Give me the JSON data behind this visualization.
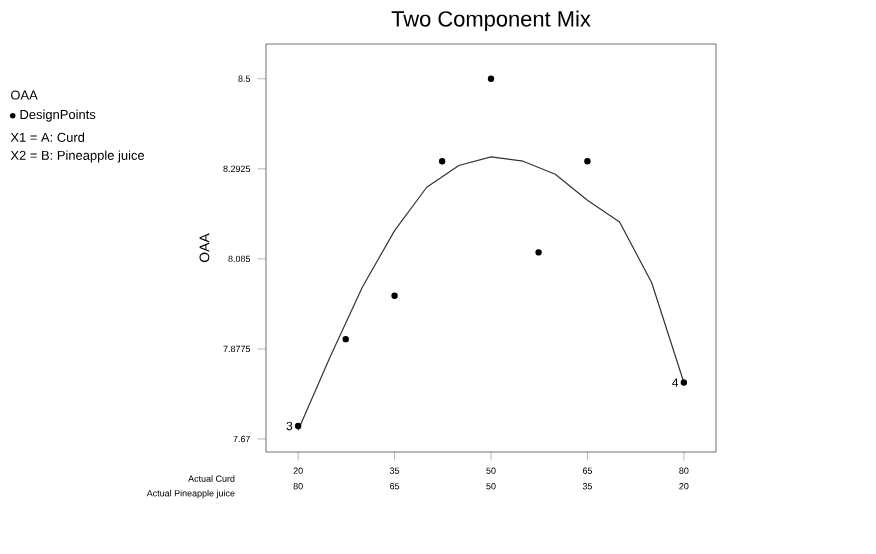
{
  "chart_data": {
    "type": "scatter",
    "title": "Two Component Mix",
    "xlabel": "Actual Curd",
    "ylabel": "OAA",
    "x2label": "Actual Pineapple juice",
    "legend_title": "OAA",
    "legend": "top left",
    "xlim": [
      15,
      85
    ],
    "xticks": [
      20,
      35,
      50,
      65,
      80
    ],
    "x2lim": [
      85,
      15
    ],
    "x2ticks": [
      80,
      65,
      50,
      35,
      20
    ],
    "ylim": [
      7.64,
      8.58
    ],
    "yticks": [
      7.67,
      7.8775,
      8.085,
      8.2925,
      8.5
    ],
    "series": [
      {
        "name": "DesignPoints",
        "type": "scatter",
        "marker": "circle",
        "color": "#000000",
        "x": [
          20,
          27.4,
          35,
          42.4,
          50,
          57.4,
          65,
          80
        ],
        "values": [
          7.7,
          7.9,
          8.0,
          8.31,
          8.5,
          8.1,
          8.31,
          7.8
        ]
      },
      {
        "type": "line",
        "marker": "none",
        "line_style": "solid",
        "color": "#333333",
        "x": [
          20,
          25,
          30,
          35,
          40,
          45,
          50,
          55,
          60,
          65,
          70,
          75,
          80
        ],
        "values": [
          7.69,
          7.86,
          8.02,
          8.15,
          8.25,
          8.3,
          8.32,
          8.31,
          8.28,
          8.22,
          8.17,
          8.03,
          7.8
        ]
      }
    ],
    "annotations": [
      "X1 = A: Curd",
      "X2 = B: Pineapple juice",
      {
        "text": "3",
        "x": 20,
        "y": 7.7
      },
      {
        "text": "4",
        "x": 80,
        "y": 7.8
      }
    ]
  }
}
